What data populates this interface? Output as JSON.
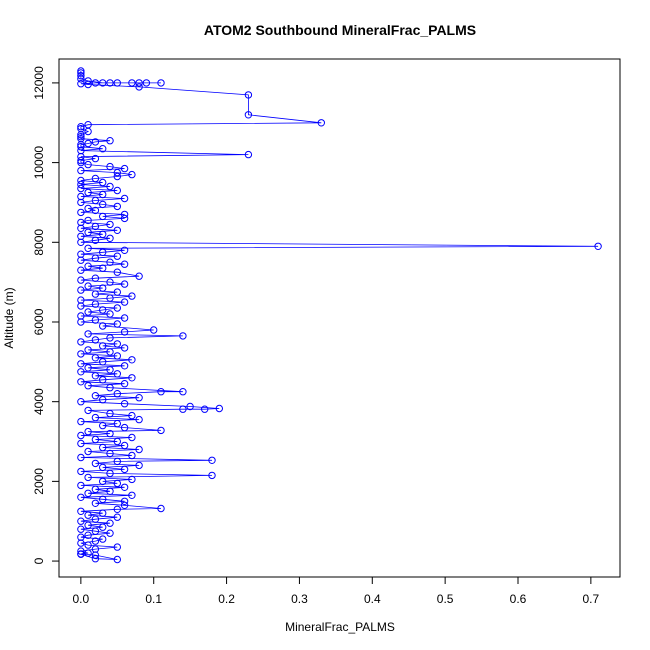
{
  "chart_data": {
    "type": "line",
    "title": "ATOM2 Southbound MineralFrac_PALMS",
    "xlabel": "MineralFrac_PALMS",
    "ylabel": "Altitude (m)",
    "xlim": [
      -0.03,
      0.74
    ],
    "ylim": [
      -400,
      12600
    ],
    "x_ticks": [
      0,
      0.1,
      0.2,
      0.3,
      0.4,
      0.5,
      0.6,
      0.7
    ],
    "x_tick_labels": [
      "0.0",
      "0.1",
      "0.2",
      "0.3",
      "0.4",
      "0.5",
      "0.6",
      "0.7"
    ],
    "y_ticks": [
      0,
      2000,
      4000,
      6000,
      8000,
      10000,
      12000
    ],
    "y_tick_labels": [
      "0",
      "2000",
      "4000",
      "6000",
      "8000",
      "10000",
      "12000"
    ],
    "grid": false,
    "legend": "none",
    "marker": "open-circle",
    "color": "#0000ff",
    "series": [
      {
        "points": [
          [
            0.0,
            12300
          ],
          [
            0.0,
            12250
          ],
          [
            0.0,
            12180
          ],
          [
            0.0,
            12100
          ],
          [
            0.01,
            12050
          ],
          [
            0.03,
            12000
          ],
          [
            0.05,
            12000
          ],
          [
            0.07,
            12000
          ],
          [
            0.08,
            12000
          ],
          [
            0.11,
            12000
          ],
          [
            0.09,
            12000
          ],
          [
            0.04,
            12000
          ],
          [
            0.02,
            12000
          ],
          [
            0.0,
            11980
          ],
          [
            0.01,
            11960
          ],
          [
            0.08,
            11900
          ],
          [
            0.23,
            11700
          ],
          [
            0.23,
            11200
          ],
          [
            0.33,
            11000
          ],
          [
            0.01,
            10950
          ],
          [
            0.0,
            10900
          ],
          [
            0.0,
            10850
          ],
          [
            0.01,
            10780
          ],
          [
            0.0,
            10700
          ],
          [
            0.0,
            10650
          ],
          [
            0.0,
            10600
          ],
          [
            0.04,
            10550
          ],
          [
            0.02,
            10520
          ],
          [
            0.01,
            10480
          ],
          [
            0.0,
            10450
          ],
          [
            0.0,
            10400
          ],
          [
            0.03,
            10350
          ],
          [
            0.0,
            10300
          ],
          [
            0.23,
            10200
          ],
          [
            0.0,
            10150
          ],
          [
            0.02,
            10100
          ],
          [
            0.0,
            10050
          ],
          [
            0.0,
            10000
          ],
          [
            0.01,
            9950
          ],
          [
            0.04,
            9900
          ],
          [
            0.06,
            9850
          ],
          [
            0.0,
            9800
          ],
          [
            0.05,
            9750
          ],
          [
            0.07,
            9700
          ],
          [
            0.05,
            9650
          ],
          [
            0.02,
            9600
          ],
          [
            0.0,
            9550
          ],
          [
            0.03,
            9500
          ],
          [
            0.0,
            9450
          ],
          [
            0.04,
            9400
          ],
          [
            0.0,
            9350
          ],
          [
            0.05,
            9300
          ],
          [
            0.01,
            9250
          ],
          [
            0.03,
            9200
          ],
          [
            0.0,
            9150
          ],
          [
            0.06,
            9100
          ],
          [
            0.02,
            9050
          ],
          [
            0.0,
            9000
          ],
          [
            0.03,
            8950
          ],
          [
            0.05,
            8900
          ],
          [
            0.01,
            8850
          ],
          [
            0.02,
            8800
          ],
          [
            0.0,
            8750
          ],
          [
            0.06,
            8700
          ],
          [
            0.03,
            8650
          ],
          [
            0.06,
            8600
          ],
          [
            0.01,
            8550
          ],
          [
            0.0,
            8500
          ],
          [
            0.04,
            8450
          ],
          [
            0.02,
            8400
          ],
          [
            0.0,
            8350
          ],
          [
            0.05,
            8300
          ],
          [
            0.01,
            8250
          ],
          [
            0.03,
            8200
          ],
          [
            0.0,
            8150
          ],
          [
            0.04,
            8100
          ],
          [
            0.02,
            8050
          ],
          [
            0.0,
            8000
          ],
          [
            0.71,
            7900
          ],
          [
            0.01,
            7850
          ],
          [
            0.06,
            7800
          ],
          [
            0.03,
            7750
          ],
          [
            0.0,
            7700
          ],
          [
            0.05,
            7650
          ],
          [
            0.02,
            7600
          ],
          [
            0.0,
            7550
          ],
          [
            0.04,
            7500
          ],
          [
            0.06,
            7450
          ],
          [
            0.01,
            7400
          ],
          [
            0.03,
            7350
          ],
          [
            0.0,
            7300
          ],
          [
            0.05,
            7250
          ],
          [
            0.08,
            7150
          ],
          [
            0.02,
            7100
          ],
          [
            0.0,
            7050
          ],
          [
            0.04,
            7000
          ],
          [
            0.06,
            6950
          ],
          [
            0.01,
            6900
          ],
          [
            0.03,
            6850
          ],
          [
            0.0,
            6800
          ],
          [
            0.05,
            6750
          ],
          [
            0.02,
            6700
          ],
          [
            0.07,
            6650
          ],
          [
            0.04,
            6600
          ],
          [
            0.0,
            6550
          ],
          [
            0.06,
            6500
          ],
          [
            0.02,
            6450
          ],
          [
            0.0,
            6400
          ],
          [
            0.05,
            6350
          ],
          [
            0.03,
            6300
          ],
          [
            0.01,
            6250
          ],
          [
            0.04,
            6200
          ],
          [
            0.0,
            6150
          ],
          [
            0.06,
            6100
          ],
          [
            0.02,
            6050
          ],
          [
            0.0,
            6000
          ],
          [
            0.05,
            5950
          ],
          [
            0.03,
            5900
          ],
          [
            0.1,
            5800
          ],
          [
            0.06,
            5750
          ],
          [
            0.01,
            5700
          ],
          [
            0.14,
            5650
          ],
          [
            0.04,
            5600
          ],
          [
            0.02,
            5550
          ],
          [
            0.0,
            5500
          ],
          [
            0.05,
            5450
          ],
          [
            0.03,
            5400
          ],
          [
            0.06,
            5350
          ],
          [
            0.01,
            5300
          ],
          [
            0.04,
            5250
          ],
          [
            0.0,
            5200
          ],
          [
            0.05,
            5150
          ],
          [
            0.02,
            5100
          ],
          [
            0.07,
            5050
          ],
          [
            0.03,
            5000
          ],
          [
            0.0,
            4950
          ],
          [
            0.06,
            4900
          ],
          [
            0.01,
            4850
          ],
          [
            0.04,
            4800
          ],
          [
            0.0,
            4750
          ],
          [
            0.05,
            4700
          ],
          [
            0.02,
            4650
          ],
          [
            0.07,
            4600
          ],
          [
            0.03,
            4550
          ],
          [
            0.0,
            4500
          ],
          [
            0.06,
            4450
          ],
          [
            0.01,
            4400
          ],
          [
            0.04,
            4350
          ],
          [
            0.14,
            4250
          ],
          [
            0.11,
            4250
          ],
          [
            0.05,
            4200
          ],
          [
            0.02,
            4150
          ],
          [
            0.08,
            4100
          ],
          [
            0.03,
            4050
          ],
          [
            0.0,
            4000
          ],
          [
            0.06,
            3950
          ],
          [
            0.15,
            3880
          ],
          [
            0.19,
            3830
          ],
          [
            0.17,
            3810
          ],
          [
            0.14,
            3810
          ],
          [
            0.01,
            3780
          ],
          [
            0.04,
            3700
          ],
          [
            0.07,
            3650
          ],
          [
            0.02,
            3600
          ],
          [
            0.08,
            3550
          ],
          [
            0.0,
            3500
          ],
          [
            0.05,
            3450
          ],
          [
            0.03,
            3400
          ],
          [
            0.06,
            3350
          ],
          [
            0.11,
            3280
          ],
          [
            0.01,
            3250
          ],
          [
            0.04,
            3200
          ],
          [
            0.0,
            3150
          ],
          [
            0.07,
            3100
          ],
          [
            0.02,
            3050
          ],
          [
            0.05,
            3000
          ],
          [
            0.0,
            2950
          ],
          [
            0.06,
            2900
          ],
          [
            0.03,
            2850
          ],
          [
            0.08,
            2800
          ],
          [
            0.01,
            2750
          ],
          [
            0.04,
            2700
          ],
          [
            0.07,
            2650
          ],
          [
            0.0,
            2600
          ],
          [
            0.18,
            2530
          ],
          [
            0.05,
            2500
          ],
          [
            0.02,
            2450
          ],
          [
            0.08,
            2400
          ],
          [
            0.03,
            2350
          ],
          [
            0.06,
            2300
          ],
          [
            0.0,
            2250
          ],
          [
            0.04,
            2200
          ],
          [
            0.18,
            2150
          ],
          [
            0.01,
            2100
          ],
          [
            0.07,
            2050
          ],
          [
            0.03,
            2000
          ],
          [
            0.05,
            1950
          ],
          [
            0.0,
            1900
          ],
          [
            0.06,
            1850
          ],
          [
            0.02,
            1800
          ],
          [
            0.04,
            1750
          ],
          [
            0.01,
            1700
          ],
          [
            0.07,
            1650
          ],
          [
            0.0,
            1600
          ],
          [
            0.03,
            1550
          ],
          [
            0.06,
            1500
          ],
          [
            0.02,
            1450
          ],
          [
            0.06,
            1400
          ],
          [
            0.11,
            1320
          ],
          [
            0.05,
            1300
          ],
          [
            0.0,
            1250
          ],
          [
            0.03,
            1200
          ],
          [
            0.01,
            1150
          ],
          [
            0.05,
            1100
          ],
          [
            0.02,
            1050
          ],
          [
            0.0,
            1000
          ],
          [
            0.04,
            950
          ],
          [
            0.01,
            900
          ],
          [
            0.03,
            850
          ],
          [
            0.0,
            800
          ],
          [
            0.02,
            750
          ],
          [
            0.04,
            700
          ],
          [
            0.01,
            650
          ],
          [
            0.0,
            600
          ],
          [
            0.03,
            550
          ],
          [
            0.02,
            500
          ],
          [
            0.0,
            450
          ],
          [
            0.01,
            400
          ],
          [
            0.05,
            350
          ],
          [
            0.02,
            300
          ],
          [
            0.0,
            250
          ],
          [
            0.01,
            200
          ],
          [
            0.0,
            180
          ],
          [
            0.02,
            150
          ],
          [
            0.05,
            40
          ],
          [
            0.02,
            60
          ],
          [
            0.0,
            170
          ]
        ]
      }
    ]
  }
}
